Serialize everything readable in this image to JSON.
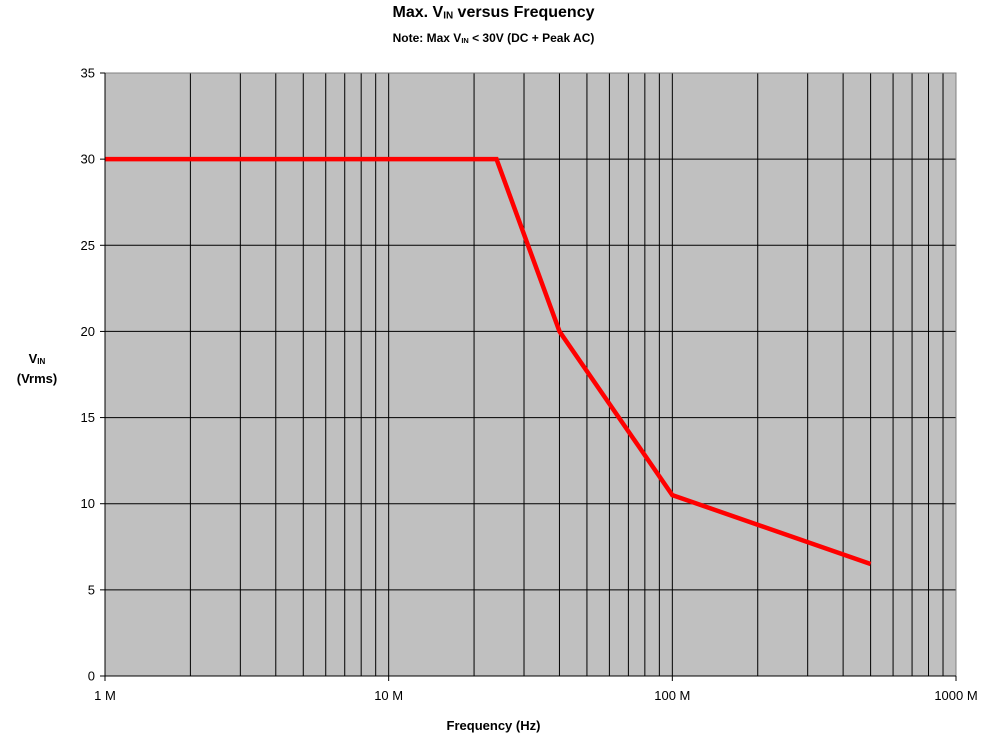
{
  "chart_data": {
    "type": "line",
    "title_main": "Max. V",
    "title_sub": "IN",
    "title_rest": " versus Frequency",
    "subtitle_main": "Note: Max V",
    "subtitle_sub": "IN",
    "subtitle_rest": " < 30V (DC + Peak AC)",
    "xlabel": "Frequency (Hz)",
    "ylabel_main": "V",
    "ylabel_sub": "IN",
    "ylabel_unit": "(Vrms)",
    "x_scale": "log",
    "xlim": [
      1000000,
      1000000000
    ],
    "ylim": [
      0,
      35
    ],
    "x_ticks": [
      {
        "value": 1000000,
        "label": "1 M"
      },
      {
        "value": 10000000,
        "label": "10 M"
      },
      {
        "value": 100000000,
        "label": "100 M"
      },
      {
        "value": 1000000000,
        "label": "1000 M"
      }
    ],
    "y_ticks": [
      0,
      5,
      10,
      15,
      20,
      25,
      30,
      35
    ],
    "grid": true,
    "plot_background": "#c0c0c0",
    "series": [
      {
        "color": "#ff0000",
        "x": [
          1000000,
          24000000,
          40000000,
          100000000,
          500000000
        ],
        "y": [
          30,
          30,
          20,
          10.5,
          6.5
        ]
      }
    ]
  }
}
